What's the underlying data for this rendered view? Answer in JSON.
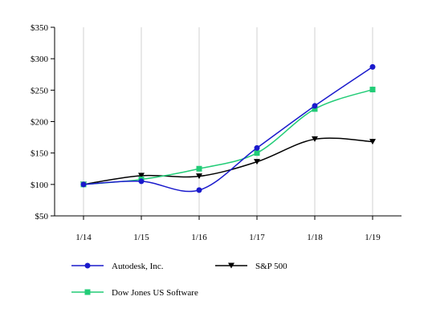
{
  "chart_data": {
    "type": "line",
    "title": "",
    "xlabel": "",
    "ylabel": "",
    "categories": [
      "1/14",
      "1/15",
      "1/16",
      "1/17",
      "1/18",
      "1/19"
    ],
    "ylim": [
      50,
      350
    ],
    "yticks": [
      50,
      100,
      150,
      200,
      250,
      300,
      350
    ],
    "ytick_labels": [
      "$50",
      "$100",
      "$150",
      "$200",
      "$250",
      "$300",
      "$350"
    ],
    "grid": "vertical",
    "legend_position": "bottom",
    "series": [
      {
        "name": "Autodesk, Inc.",
        "values": [
          100,
          105,
          91,
          158,
          225,
          287
        ],
        "color": "#1a1acc",
        "marker": "circle"
      },
      {
        "name": "S&P 500",
        "values": [
          100,
          114,
          113,
          136,
          172,
          168
        ],
        "color": "#000000",
        "marker": "triangle-down"
      },
      {
        "name": "Dow Jones US Software",
        "values": [
          100,
          108,
          125,
          150,
          220,
          251
        ],
        "color": "#22cc77",
        "marker": "square"
      }
    ]
  }
}
